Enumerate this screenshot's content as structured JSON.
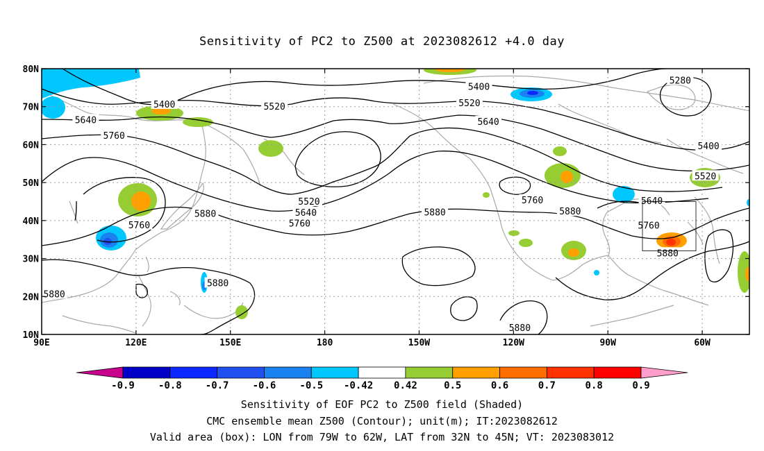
{
  "title": "Sensitivity of PC2 to Z500 at 2023082612 +4.0 day",
  "map": {
    "lon_ticks": [
      "90E",
      "120E",
      "150E",
      "180",
      "150W",
      "120W",
      "90W",
      "60W"
    ],
    "lat_ticks": [
      "80N",
      "70N",
      "60N",
      "50N",
      "40N",
      "30N",
      "20N",
      "10N"
    ],
    "lon_range": [
      90,
      315
    ],
    "lat_range": [
      10,
      80
    ],
    "valid_box": {
      "lon": [
        281,
        298
      ],
      "lat": [
        32,
        45
      ]
    },
    "contour_labels": [
      {
        "text": "5400",
        "lon": 129,
        "lat": 70.7
      },
      {
        "text": "5520",
        "lon": 164,
        "lat": 70.1
      },
      {
        "text": "5640",
        "lon": 104,
        "lat": 66.6
      },
      {
        "text": "5760",
        "lon": 113,
        "lat": 62.5
      },
      {
        "text": "5400",
        "lon": 229,
        "lat": 75.3
      },
      {
        "text": "5520",
        "lon": 226,
        "lat": 71.0
      },
      {
        "text": "5640",
        "lon": 232,
        "lat": 66.1
      },
      {
        "text": "5280",
        "lon": 293,
        "lat": 77.0
      },
      {
        "text": "5400",
        "lon": 302,
        "lat": 59.7
      },
      {
        "text": "5520",
        "lon": 301,
        "lat": 51.8
      },
      {
        "text": "5640",
        "lon": 284,
        "lat": 45.3
      },
      {
        "text": "5760",
        "lon": 283,
        "lat": 38.8
      },
      {
        "text": "5880",
        "lon": 289,
        "lat": 31.5
      },
      {
        "text": "5880",
        "lon": 258,
        "lat": 42.5
      },
      {
        "text": "5760",
        "lon": 246,
        "lat": 45.5
      },
      {
        "text": "5880",
        "lon": 215,
        "lat": 42.3
      },
      {
        "text": "5640",
        "lon": 174,
        "lat": 42.2
      },
      {
        "text": "5520",
        "lon": 175,
        "lat": 45.1
      },
      {
        "text": "5760",
        "lon": 172,
        "lat": 39.3
      },
      {
        "text": "5880",
        "lon": 142,
        "lat": 41.9
      },
      {
        "text": "5760",
        "lon": 121,
        "lat": 38.9
      },
      {
        "text": "5880",
        "lon": 146,
        "lat": 23.6
      },
      {
        "text": "5880",
        "lon": 94,
        "lat": 20.7
      },
      {
        "text": "5880",
        "lon": 242,
        "lat": 11.8
      }
    ]
  },
  "colorbar": {
    "labels": [
      "-0.9",
      "-0.8",
      "-0.7",
      "-0.6",
      "-0.5",
      "-0.42",
      "0.42",
      "0.5",
      "0.6",
      "0.7",
      "0.8",
      "0.9"
    ],
    "colors": [
      "#c8008c",
      "#0000c8",
      "#0a28ff",
      "#2050f0",
      "#1a82f0",
      "#00c8ff",
      "#ffffff",
      "#96cd32",
      "#ffa000",
      "#ff6e00",
      "#ff3200",
      "#ff0000",
      "#ff9ecd"
    ]
  },
  "captions": [
    "Sensitivity of EOF PC2 to Z500 field (Shaded)",
    "CMC ensemble mean Z500 (Contour); unit(m); IT:2023082612",
    "Valid area (box): LON from 79W to 62W, LAT from 32N to 45N; VT: 2023083012"
  ]
}
